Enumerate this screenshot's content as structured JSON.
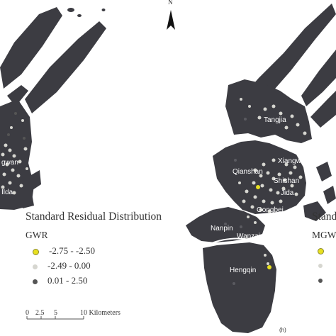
{
  "north_arrow": {
    "label": "N"
  },
  "left_panel": {
    "legend": {
      "title": "Standard Residual Distribution",
      "model": "GWR",
      "classes": [
        {
          "label": "-2.75 - -2.50",
          "color": "#e8e020"
        },
        {
          "label": "-2.49 - 0.00",
          "color": "#d6d6d0"
        },
        {
          "label": "0.01 - 2.50",
          "color": "#555555"
        }
      ]
    },
    "map_labels": [
      "gwan",
      "Ilda"
    ],
    "scale_bar": {
      "ticks": [
        "0",
        "2.5",
        "5",
        "10 Kilometers"
      ]
    }
  },
  "right_panel": {
    "panel_label": "(h)",
    "legend": {
      "title": "Stand",
      "model": "MGW"
    },
    "map_labels": {
      "tangjia": "Tangjia",
      "xiangwan": "Xiangwan",
      "qianshan": "Qianshan",
      "shishan": "Shishan",
      "jida": "Jida",
      "gongbei": "Gongbei",
      "nanpin": "Nanpin",
      "wanzai": "Wanzai",
      "hengqin": "Hengqin"
    }
  },
  "colors": {
    "land": "#3c3c42",
    "land_alt": "#46464c",
    "residual_low": "#e8e020",
    "residual_mid": "#d6d6d0",
    "residual_high": "#555555"
  }
}
